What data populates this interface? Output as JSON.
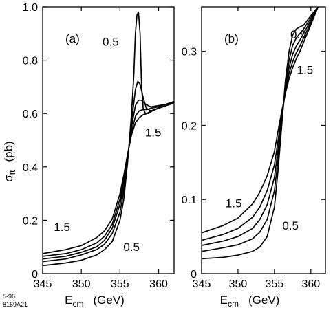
{
  "chart_data": [
    {
      "type": "line",
      "panel_label": "(a)",
      "xlabel": {
        "main": "E",
        "sub": "cm",
        "unit": "(GeV)"
      },
      "ylabel": {
        "main": "σ",
        "sub": "tt",
        "unit": "(pb)"
      },
      "xlim": [
        345,
        362
      ],
      "ylim": [
        0,
        1.0
      ],
      "xticks": [
        345,
        350,
        355,
        360
      ],
      "yticks": [
        0,
        0.2,
        0.4,
        0.6,
        0.8,
        1.0
      ],
      "ytick_labels": [
        "0",
        "0.2",
        "0.4",
        "0.6",
        "0.8",
        "1.0"
      ],
      "annotations": [
        {
          "text": "0.5",
          "x": 353.8,
          "y": 0.87
        },
        {
          "text": "1.5",
          "x": 359.3,
          "y": 0.53
        },
        {
          "text": "1.5",
          "x": 347.5,
          "y": 0.175
        },
        {
          "text": "0.5",
          "x": 356.5,
          "y": 0.1
        }
      ],
      "series": [
        {
          "x": [
            345,
            348,
            350,
            352,
            353,
            354,
            355,
            355.5,
            356,
            356.5,
            356.8,
            357,
            357.2,
            357.4,
            357.6,
            357.8,
            358,
            358.3,
            358.7,
            359.2,
            360,
            361,
            362
          ],
          "y": [
            0.03,
            0.04,
            0.05,
            0.07,
            0.09,
            0.12,
            0.2,
            0.28,
            0.42,
            0.6,
            0.75,
            0.9,
            0.97,
            0.98,
            0.9,
            0.7,
            0.62,
            0.6,
            0.6,
            0.61,
            0.62,
            0.63,
            0.64
          ]
        },
        {
          "x": [
            345,
            348,
            350,
            352,
            353,
            354,
            355,
            355.5,
            356,
            356.5,
            357,
            357.3,
            357.6,
            358,
            358.4,
            359,
            360,
            361,
            362
          ],
          "y": [
            0.045,
            0.055,
            0.07,
            0.09,
            0.11,
            0.15,
            0.23,
            0.31,
            0.43,
            0.57,
            0.69,
            0.72,
            0.71,
            0.66,
            0.62,
            0.61,
            0.62,
            0.63,
            0.64
          ]
        },
        {
          "x": [
            345,
            348,
            350,
            352,
            353,
            354,
            355,
            355.5,
            356,
            356.5,
            357,
            357.4,
            357.8,
            358.3,
            359,
            360,
            361,
            362
          ],
          "y": [
            0.055,
            0.065,
            0.08,
            0.1,
            0.125,
            0.17,
            0.26,
            0.33,
            0.44,
            0.55,
            0.63,
            0.65,
            0.65,
            0.635,
            0.625,
            0.63,
            0.635,
            0.645
          ]
        },
        {
          "x": [
            345,
            348,
            350,
            352,
            353,
            354,
            355,
            355.5,
            356,
            356.5,
            357,
            357.5,
            358,
            358.5,
            359,
            360,
            361,
            362
          ],
          "y": [
            0.065,
            0.075,
            0.09,
            0.115,
            0.14,
            0.185,
            0.28,
            0.35,
            0.445,
            0.53,
            0.59,
            0.61,
            0.615,
            0.615,
            0.62,
            0.625,
            0.635,
            0.645
          ]
        },
        {
          "x": [
            345,
            348,
            350,
            352,
            353,
            354,
            355,
            355.5,
            356,
            356.5,
            357,
            357.5,
            358,
            358.5,
            359,
            360,
            361,
            362
          ],
          "y": [
            0.075,
            0.09,
            0.105,
            0.135,
            0.16,
            0.205,
            0.3,
            0.37,
            0.45,
            0.52,
            0.565,
            0.585,
            0.595,
            0.6,
            0.61,
            0.62,
            0.63,
            0.64
          ]
        }
      ]
    },
    {
      "type": "line",
      "panel_label": "(b)",
      "xlabel": {
        "main": "E",
        "sub": "cm",
        "unit": "(GeV)"
      },
      "ylabel": null,
      "xlim": [
        345,
        362
      ],
      "ylim": [
        0,
        0.36
      ],
      "xticks": [
        345,
        350,
        355,
        360
      ],
      "yticks": [
        0,
        0.1,
        0.2,
        0.3
      ],
      "ytick_labels": [
        "0",
        "0.1",
        "0.2",
        "0.3"
      ],
      "annotations": [
        {
          "text": "0.5",
          "x": 358.3,
          "y": 0.323
        },
        {
          "text": "1.5",
          "x": 359.2,
          "y": 0.275
        },
        {
          "text": "1.5",
          "x": 349.4,
          "y": 0.095
        },
        {
          "text": "0.5",
          "x": 357.2,
          "y": 0.065
        }
      ],
      "series": [
        {
          "x": [
            345,
            348,
            350,
            352,
            353,
            354,
            355,
            355.5,
            356,
            356.5,
            357,
            357.5,
            358,
            358.5,
            359,
            360,
            361
          ],
          "y": [
            0.02,
            0.022,
            0.025,
            0.03,
            0.036,
            0.05,
            0.09,
            0.14,
            0.2,
            0.26,
            0.3,
            0.322,
            0.33,
            0.333,
            0.335,
            0.348,
            0.36
          ]
        },
        {
          "x": [
            345,
            348,
            350,
            352,
            353,
            354,
            355,
            355.5,
            356,
            356.5,
            357,
            357.5,
            358,
            358.5,
            359,
            360,
            361
          ],
          "y": [
            0.03,
            0.035,
            0.039,
            0.047,
            0.056,
            0.073,
            0.112,
            0.155,
            0.205,
            0.253,
            0.288,
            0.308,
            0.318,
            0.324,
            0.33,
            0.345,
            0.36
          ]
        },
        {
          "x": [
            345,
            348,
            350,
            352,
            353,
            354,
            355,
            355.5,
            356,
            356.5,
            357,
            357.5,
            358,
            358.5,
            359,
            360,
            361
          ],
          "y": [
            0.038,
            0.044,
            0.05,
            0.061,
            0.073,
            0.093,
            0.13,
            0.168,
            0.21,
            0.249,
            0.278,
            0.296,
            0.307,
            0.315,
            0.324,
            0.342,
            0.36
          ]
        },
        {
          "x": [
            345,
            348,
            350,
            352,
            353,
            354,
            355,
            355.5,
            356,
            356.5,
            357,
            357.5,
            358,
            358.5,
            359,
            360,
            361
          ],
          "y": [
            0.045,
            0.053,
            0.061,
            0.076,
            0.09,
            0.112,
            0.147,
            0.18,
            0.214,
            0.245,
            0.27,
            0.286,
            0.298,
            0.307,
            0.318,
            0.339,
            0.36
          ]
        },
        {
          "x": [
            345,
            348,
            350,
            352,
            353,
            354,
            355,
            355.5,
            356,
            356.5,
            357,
            357.5,
            358,
            358.5,
            359,
            360,
            361
          ],
          "y": [
            0.055,
            0.065,
            0.075,
            0.094,
            0.11,
            0.132,
            0.165,
            0.193,
            0.219,
            0.243,
            0.263,
            0.278,
            0.29,
            0.3,
            0.312,
            0.336,
            0.36
          ]
        }
      ]
    }
  ],
  "footer": {
    "line1": "5-96",
    "line2": "8169A21"
  }
}
